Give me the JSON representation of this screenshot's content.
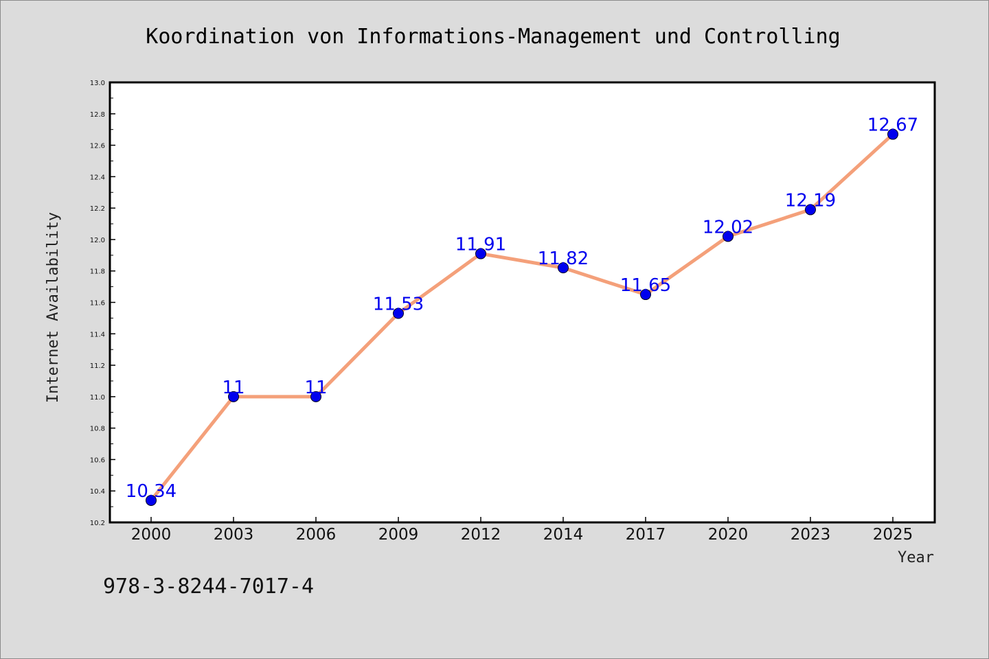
{
  "chart_data": {
    "type": "line",
    "title": "Koordination von Informations-Management und Controlling",
    "xlabel": "Year",
    "ylabel": "Internet Availability",
    "x": [
      "2000",
      "2003",
      "2006",
      "2009",
      "2012",
      "2014",
      "2017",
      "2020",
      "2023",
      "2025"
    ],
    "series": [
      {
        "values": [
          10.34,
          11,
          11,
          11.53,
          11.91,
          11.82,
          11.65,
          12.02,
          12.19,
          12.67
        ],
        "data_labels": [
          "10.34",
          "11",
          "11",
          "11.53",
          "11.91",
          "11.82",
          "11.65",
          "12.02",
          "12.19",
          "12.67"
        ],
        "line_color": "#f4a07a",
        "marker_color": "#0000ee"
      }
    ],
    "ylim": [
      10.2,
      13.0
    ],
    "yticks": [
      "10.2",
      "10.4",
      "10.6",
      "10.8",
      "11.0",
      "11.2",
      "11.4",
      "11.6",
      "11.8",
      "12.0",
      "12.2",
      "12.4",
      "12.6",
      "12.8",
      "13.0"
    ],
    "grid": false,
    "legend": "none",
    "annotation": "978-3-8244-7017-4"
  },
  "colors": {
    "background": "#dcdcdc",
    "plot_background": "#ffffff",
    "line": "#f4a07a",
    "marker": "#0000ee",
    "data_label": "#0000ee"
  }
}
